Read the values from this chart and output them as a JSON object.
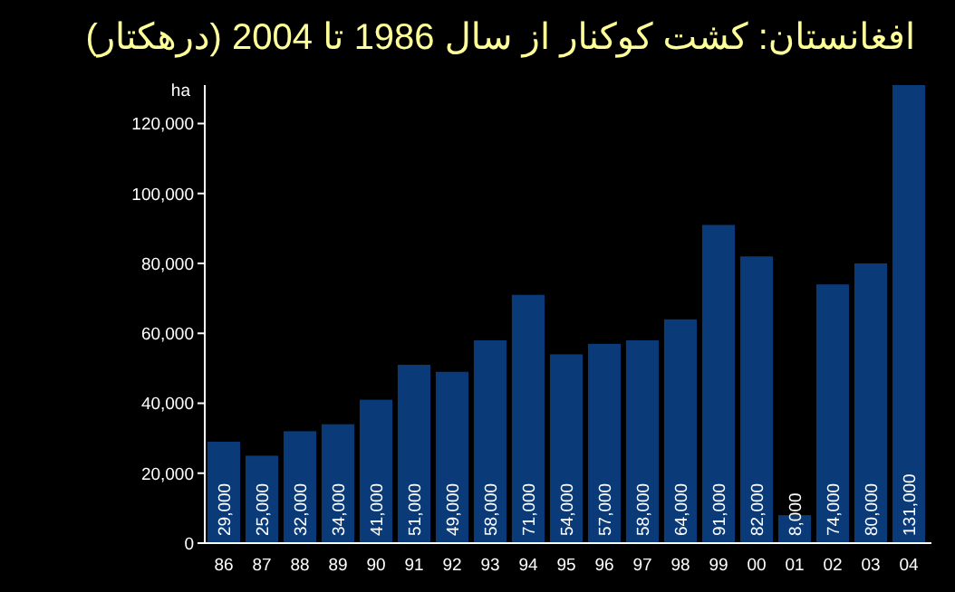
{
  "chart_data": {
    "type": "bar",
    "title": "افغانستان: کشت کوکنار از سال 1986 تا 2004 (درهکتار)",
    "ylabel": "ha",
    "categories": [
      "86",
      "87",
      "88",
      "89",
      "90",
      "91",
      "92",
      "93",
      "94",
      "95",
      "96",
      "97",
      "98",
      "99",
      "00",
      "01",
      "02",
      "03",
      "04"
    ],
    "values": [
      29000,
      25000,
      32000,
      34000,
      41000,
      51000,
      49000,
      58000,
      71000,
      54000,
      57000,
      58000,
      64000,
      91000,
      82000,
      8000,
      74000,
      80000,
      131000
    ],
    "value_labels": [
      "29,000",
      "25,000",
      "32,000",
      "34,000",
      "41,000",
      "51,000",
      "49,000",
      "58,000",
      "71,000",
      "54,000",
      "57,000",
      "58,000",
      "64,000",
      "91,000",
      "82,000",
      "8,000",
      "74,000",
      "80,000",
      "131,000"
    ],
    "color": "#0b3a78",
    "ylim": [
      0,
      131000
    ],
    "yticks": [
      0,
      {
        "value": 20000,
        "label": "20,000"
      },
      {
        "value": 40000,
        "label": "40,000"
      },
      {
        "value": 60000,
        "label": "60,000"
      },
      {
        "value": 80000,
        "label": "80,000"
      },
      {
        "value": 100000,
        "label": "100,000"
      },
      {
        "value": 120000,
        "label": "120,000"
      }
    ]
  }
}
